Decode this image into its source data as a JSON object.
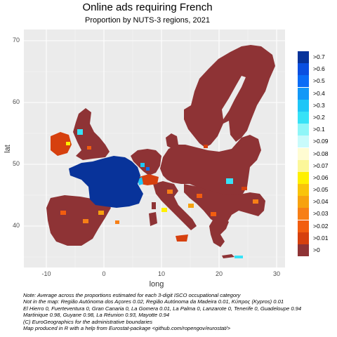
{
  "title": "Online ads requiring French",
  "subtitle": "Proportion by NUTS-3 regions, 2021",
  "axes": {
    "xlabel": "long",
    "ylabel": "lat",
    "x_ticks": [
      "-10",
      "0",
      "10",
      "20",
      "30"
    ],
    "y_ticks": [
      "40",
      "50",
      "60",
      "70"
    ]
  },
  "legend": [
    {
      "label": ">0.7",
      "color": "#08339A"
    },
    {
      "label": ">0.6",
      "color": "#0B4FE0"
    },
    {
      "label": ">0.5",
      "color": "#0A6CF6"
    },
    {
      "label": ">0.4",
      "color": "#1398F7"
    },
    {
      "label": ">0.3",
      "color": "#1EC6F7"
    },
    {
      "label": ">0.2",
      "color": "#37E2F7"
    },
    {
      "label": ">0.1",
      "color": "#8FF6F8"
    },
    {
      "label": ">0.09",
      "color": "#C9FBFB"
    },
    {
      "label": ">0.08",
      "color": "#FFFCD2"
    },
    {
      "label": ">0.07",
      "color": "#FCF79A"
    },
    {
      "label": ">0.06",
      "color": "#FFF000"
    },
    {
      "label": ">0.05",
      "color": "#F9C40A"
    },
    {
      "label": ">0.04",
      "color": "#F7A20F"
    },
    {
      "label": ">0.03",
      "color": "#F77F16"
    },
    {
      "label": ">0.02",
      "color": "#F25D0F"
    },
    {
      "label": ">0.01",
      "color": "#D6400E"
    },
    {
      "label": ">0",
      "color": "#8E3335"
    }
  ],
  "notes": [
    "Note: Average across the proportions estimated for each 3-digit ISCO occupational category",
    "Not in the map:  Região Autónoma dos Açores 0.02, Região Autónoma da Madeira 0.01, Κύπρος (Kypros) 0.01",
    " El Hierro 0, Fuerteventura 0, Gran Canaria 0, La Gomera 0.01, La Palma 0, Lanzarote 0, Tenerife 0, Guadeloupe 0.94",
    " Martinique 0.98, Guyane 0.98, La Réunion 0.93, Mayotte 0.94",
    "(C) EuroGeographics for the administrative boundaries",
    " Map produced in R with a help from Eurostat-package <github.com/ropengov/eurostat/>"
  ],
  "colors": {
    "panel": "#EBEBEB",
    "grid": "#FFFFFF",
    "dark_red": "#8E3335",
    "france_blue": "#08339A"
  }
}
